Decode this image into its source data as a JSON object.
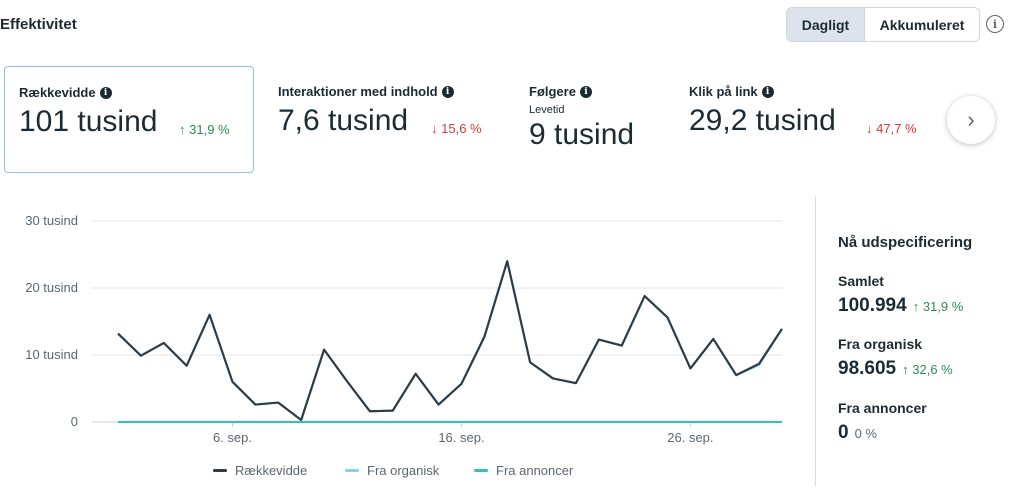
{
  "header": {
    "title": "Effektivitet",
    "toggle": {
      "active": "Dagligt",
      "inactive": "Akkumuleret"
    },
    "info_icon": "info-circle-icon"
  },
  "metrics": [
    {
      "label": "Rækkevidde",
      "value": "101 tusind",
      "change": "31,9 %",
      "direction": "up",
      "selected": true
    },
    {
      "label": "Interaktioner med indhold",
      "value": "7,6 tusind",
      "change": "15,6 %",
      "direction": "down"
    },
    {
      "label": "Følgere",
      "sub": "Levetid",
      "value": "9 tusind"
    },
    {
      "label": "Klik på link",
      "value": "29,2 tusind",
      "change": "47,7 %",
      "direction": "down"
    }
  ],
  "arrows": {
    "up": "↑",
    "down": "↓",
    "next": "›"
  },
  "chart_data": {
    "type": "line",
    "y_ticks": [
      "30 tusind",
      "20 tusind",
      "10 tusind",
      "0"
    ],
    "ylim": [
      0,
      30000
    ],
    "x_ticks": [
      "6. sep.",
      "16. sep.",
      "26. sep."
    ],
    "x_tick_days": [
      6,
      16,
      26
    ],
    "x_days": [
      1,
      2,
      3,
      4,
      5,
      6,
      7,
      8,
      9,
      10,
      11,
      12,
      13,
      14,
      15,
      16,
      17,
      18,
      19,
      20,
      21,
      22,
      23,
      24,
      25,
      26,
      27,
      28,
      29,
      30
    ],
    "series": [
      {
        "name": "Rækkevidde",
        "color": "#2f3b45",
        "values": [
          13200,
          9900,
          11800,
          8400,
          16000,
          6000,
          2600,
          2900,
          300,
          10800,
          6100,
          1600,
          1700,
          7200,
          2600,
          5700,
          12700,
          24000,
          8900,
          6500,
          5800,
          12300,
          11400,
          18800,
          15600,
          8000,
          12400,
          7000,
          8700,
          13900
        ]
      },
      {
        "name": "Fra organisk",
        "color": "#7fd3ee",
        "values": [
          13200,
          9900,
          11800,
          8400,
          16000,
          6000,
          2600,
          2900,
          300,
          10800,
          6100,
          1600,
          1700,
          7200,
          2600,
          5700,
          12700,
          24000,
          8900,
          6500,
          5800,
          12300,
          11400,
          18800,
          15600,
          8000,
          12400,
          7000,
          8500,
          13900
        ]
      },
      {
        "name": "Fra annoncer",
        "color": "#2ac3bf",
        "values": [
          0,
          0,
          0,
          0,
          0,
          0,
          0,
          0,
          0,
          0,
          0,
          0,
          0,
          0,
          0,
          0,
          0,
          0,
          0,
          0,
          0,
          0,
          0,
          0,
          0,
          0,
          0,
          0,
          0,
          0
        ]
      }
    ]
  },
  "breakdown": {
    "title": "Nå udspecificering",
    "items": [
      {
        "label": "Samlet",
        "value": "100.994",
        "change": "31,9 %",
        "direction": "up"
      },
      {
        "label": "Fra organisk",
        "value": "98.605",
        "change": "32,6 %",
        "direction": "up"
      },
      {
        "label": "Fra annoncer",
        "value": "0",
        "change": "0 %",
        "direction": "none"
      }
    ]
  }
}
